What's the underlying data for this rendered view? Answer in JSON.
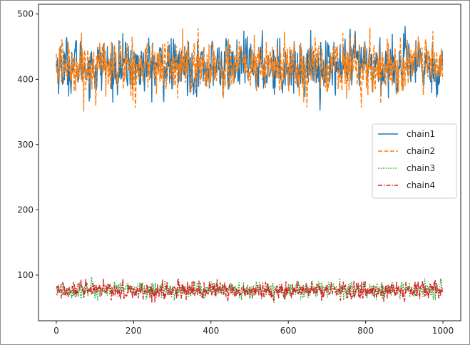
{
  "chart_data": {
    "type": "line",
    "title": "",
    "xlabel": "",
    "ylabel": "",
    "xlim": [
      -46,
      1046
    ],
    "ylim": [
      30,
      515
    ],
    "xticks": [
      0,
      200,
      400,
      600,
      800,
      1000
    ],
    "yticks": [
      100,
      200,
      300,
      400,
      500
    ],
    "n_points": 1000,
    "legend": {
      "placement": "center-right",
      "entries": [
        "chain1",
        "chain2",
        "chain3",
        "chain4"
      ]
    },
    "series": [
      {
        "name": "chain1",
        "color": "#1f77b4",
        "linestyle": "solid",
        "mean": 420,
        "min": 340,
        "max": 498
      },
      {
        "name": "chain2",
        "color": "#ff7f0e",
        "linestyle": "dashed",
        "mean": 420,
        "min": 330,
        "max": 488
      },
      {
        "name": "chain3",
        "color": "#2ca02c",
        "linestyle": "dotted",
        "mean": 77,
        "min": 58,
        "max": 106
      },
      {
        "name": "chain4",
        "color": "#d62728",
        "linestyle": "dashdot",
        "mean": 76,
        "min": 55,
        "max": 104
      }
    ]
  }
}
